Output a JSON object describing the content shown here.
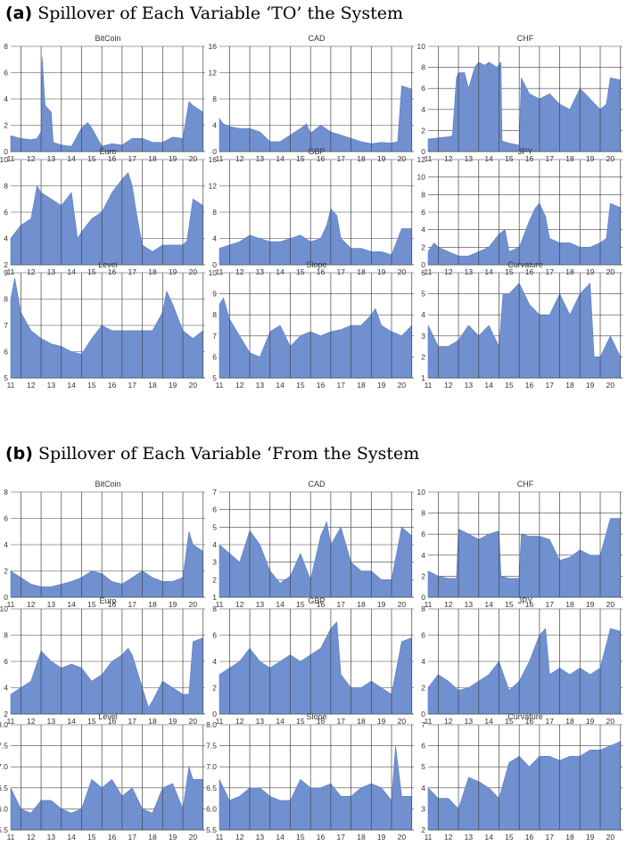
{
  "sections": [
    {
      "letter": "(a)",
      "title": "Spillover of Each Variable ‘TO’ the System"
    },
    {
      "letter": "(b)",
      "title": "Spillover of Each Variable ‘From the System"
    }
  ],
  "style": {
    "fill": "#7090D0",
    "stroke": "#5a7cc4",
    "grid": "#444444",
    "axis": "#555555"
  },
  "chart_data": [
    {
      "type": "area",
      "section": "a",
      "title": "BitCoin",
      "x_ticks": [
        "11",
        "12",
        "13",
        "14",
        "15",
        "16",
        "17",
        "18",
        "19",
        "20"
      ],
      "y_ticks": [
        "0",
        "2",
        "4",
        "6",
        "8"
      ],
      "ylim": [
        0,
        8
      ],
      "x": [
        11.0,
        11.5,
        12.0,
        12.3,
        12.5,
        12.55,
        12.7,
        13.0,
        13.1,
        13.5,
        14.0,
        14.5,
        14.8,
        15.0,
        15.5,
        16.0,
        16.5,
        17.0,
        17.5,
        18.0,
        18.5,
        19.0,
        19.5,
        19.8,
        20.0,
        20.5
      ],
      "values": [
        1.2,
        1.0,
        0.9,
        1.0,
        1.5,
        7.2,
        3.5,
        3.0,
        0.7,
        0.5,
        0.4,
        1.8,
        2.2,
        1.8,
        0.4,
        0.6,
        0.5,
        1.0,
        1.0,
        0.7,
        0.7,
        1.1,
        1.0,
        3.8,
        3.5,
        3.0
      ]
    },
    {
      "type": "area",
      "section": "a",
      "title": "CAD",
      "x_ticks": [
        "11",
        "12",
        "13",
        "14",
        "15",
        "16",
        "17",
        "18",
        "19",
        "20"
      ],
      "y_ticks": [
        "0",
        "4",
        "8",
        "12",
        "16"
      ],
      "ylim": [
        0,
        16
      ],
      "x": [
        11.0,
        11.2,
        11.5,
        12.0,
        12.5,
        13.0,
        13.5,
        14.0,
        14.5,
        15.0,
        15.3,
        15.5,
        16.0,
        16.5,
        17.0,
        17.5,
        18.0,
        18.5,
        19.0,
        19.5,
        19.8,
        20.0,
        20.5
      ],
      "values": [
        5.0,
        4.2,
        3.8,
        3.5,
        3.5,
        3.0,
        1.5,
        1.5,
        2.5,
        3.5,
        4.2,
        2.8,
        4.0,
        3.0,
        2.5,
        2.0,
        1.5,
        1.2,
        1.4,
        1.3,
        1.5,
        10.0,
        9.5
      ]
    },
    {
      "type": "area",
      "section": "a",
      "title": "CHF",
      "x_ticks": [
        "11",
        "12",
        "13",
        "14",
        "15",
        "16",
        "17",
        "18",
        "19",
        "20"
      ],
      "y_ticks": [
        "0",
        "2",
        "4",
        "6",
        "8",
        "10"
      ],
      "ylim": [
        0,
        10
      ],
      "x": [
        11.0,
        11.5,
        12.0,
        12.2,
        12.4,
        12.5,
        12.8,
        13.0,
        13.3,
        13.5,
        13.8,
        14.0,
        14.4,
        14.6,
        14.65,
        15.0,
        15.5,
        15.6,
        16.0,
        16.5,
        17.0,
        17.5,
        18.0,
        18.5,
        19.0,
        19.5,
        19.8,
        20.0,
        20.5
      ],
      "values": [
        1.2,
        1.3,
        1.4,
        1.5,
        7.0,
        7.5,
        7.5,
        6.0,
        8.0,
        8.5,
        8.2,
        8.5,
        8.0,
        8.5,
        1.0,
        0.8,
        0.6,
        7.0,
        5.5,
        5.0,
        5.5,
        4.5,
        4.0,
        6.0,
        5.0,
        4.0,
        4.5,
        7.0,
        6.8
      ]
    },
    {
      "type": "area",
      "section": "a",
      "title": "Euro",
      "x_ticks": [
        "11",
        "12",
        "13",
        "14",
        "15",
        "16",
        "17",
        "18",
        "19",
        "20"
      ],
      "y_ticks": [
        "2",
        "4",
        "6",
        "8",
        "10"
      ],
      "ylim": [
        2,
        10
      ],
      "x": [
        11.0,
        11.5,
        12.0,
        12.3,
        12.5,
        13.0,
        13.5,
        14.0,
        14.3,
        14.5,
        15.0,
        15.5,
        16.0,
        16.5,
        16.8,
        17.0,
        17.2,
        17.5,
        18.0,
        18.5,
        19.0,
        19.5,
        19.7,
        20.0,
        20.5
      ],
      "values": [
        4.0,
        5.0,
        5.5,
        8.0,
        7.5,
        7.0,
        6.5,
        7.5,
        4.0,
        4.5,
        5.5,
        6.0,
        7.5,
        8.5,
        9.0,
        8.0,
        6.0,
        3.5,
        3.0,
        3.5,
        3.5,
        3.5,
        3.8,
        7.0,
        6.5
      ]
    },
    {
      "type": "area",
      "section": "a",
      "title": "GBP",
      "x_ticks": [
        "11",
        "12",
        "13",
        "14",
        "15",
        "16",
        "17",
        "18",
        "19",
        "20"
      ],
      "y_ticks": [
        "0",
        "4",
        "8",
        "12",
        "16"
      ],
      "ylim": [
        0,
        16
      ],
      "x": [
        11.0,
        11.5,
        12.0,
        12.5,
        13.0,
        13.5,
        14.0,
        14.5,
        15.0,
        15.5,
        16.0,
        16.3,
        16.5,
        16.8,
        17.0,
        17.5,
        18.0,
        18.5,
        19.0,
        19.5,
        20.0,
        20.5
      ],
      "values": [
        2.5,
        3.0,
        3.5,
        4.5,
        4.0,
        3.5,
        3.5,
        4.0,
        4.5,
        3.5,
        4.0,
        6.0,
        8.5,
        7.5,
        4.0,
        2.5,
        2.5,
        2.0,
        2.0,
        1.5,
        5.5,
        5.5
      ]
    },
    {
      "type": "area",
      "section": "a",
      "title": "JPY",
      "x_ticks": [
        "11",
        "12",
        "13",
        "14",
        "15",
        "16",
        "17",
        "18",
        "19",
        "20"
      ],
      "y_ticks": [
        "0",
        "2",
        "4",
        "6",
        "8",
        "10",
        "12"
      ],
      "ylim": [
        0,
        12
      ],
      "x": [
        11.0,
        11.3,
        11.5,
        12.0,
        12.5,
        13.0,
        13.5,
        14.0,
        14.5,
        14.8,
        15.0,
        15.5,
        16.0,
        16.3,
        16.5,
        16.8,
        17.0,
        17.5,
        18.0,
        18.5,
        19.0,
        19.5,
        19.8,
        20.0,
        20.5
      ],
      "values": [
        1.5,
        2.5,
        2.0,
        1.5,
        1.0,
        1.0,
        1.5,
        2.0,
        3.5,
        4.0,
        1.5,
        2.0,
        5.0,
        6.5,
        7.0,
        5.5,
        3.0,
        2.5,
        2.5,
        2.0,
        2.0,
        2.5,
        3.0,
        7.0,
        6.5
      ]
    },
    {
      "type": "area",
      "section": "a",
      "title": "Level",
      "x_ticks": [
        "11",
        "12",
        "13",
        "14",
        "15",
        "16",
        "17",
        "18",
        "19",
        "20"
      ],
      "y_ticks": [
        "5",
        "6",
        "7",
        "8",
        "9"
      ],
      "ylim": [
        5,
        9
      ],
      "x": [
        11.0,
        11.2,
        11.5,
        12.0,
        12.5,
        13.0,
        13.5,
        14.0,
        14.5,
        15.0,
        15.5,
        16.0,
        16.5,
        17.0,
        17.5,
        18.0,
        18.5,
        18.7,
        19.0,
        19.5,
        20.0,
        20.5
      ],
      "values": [
        8.0,
        8.8,
        7.5,
        6.8,
        6.5,
        6.3,
        6.2,
        6.0,
        5.9,
        6.5,
        7.0,
        6.8,
        6.8,
        6.8,
        6.8,
        6.8,
        7.5,
        8.3,
        7.8,
        6.8,
        6.5,
        6.8
      ]
    },
    {
      "type": "area",
      "section": "a",
      "title": "Slope",
      "x_ticks": [
        "11",
        "12",
        "13",
        "14",
        "15",
        "16",
        "17",
        "18",
        "19",
        "20"
      ],
      "y_ticks": [
        "5",
        "6",
        "7",
        "8",
        "9",
        "10"
      ],
      "ylim": [
        5,
        10
      ],
      "x": [
        11.0,
        11.2,
        11.5,
        12.0,
        12.5,
        13.0,
        13.5,
        14.0,
        14.5,
        15.0,
        15.5,
        16.0,
        16.5,
        17.0,
        17.5,
        18.0,
        18.5,
        18.7,
        19.0,
        19.5,
        20.0,
        20.5
      ],
      "values": [
        8.5,
        8.8,
        7.8,
        7.0,
        6.2,
        6.0,
        7.2,
        7.5,
        6.5,
        7.0,
        7.2,
        7.0,
        7.2,
        7.3,
        7.5,
        7.5,
        8.0,
        8.3,
        7.5,
        7.2,
        7.0,
        7.5
      ]
    },
    {
      "type": "area",
      "section": "a",
      "title": "Curvature",
      "x_ticks": [
        "11",
        "12",
        "13",
        "14",
        "15",
        "16",
        "17",
        "18",
        "19",
        "20"
      ],
      "y_ticks": [
        "1",
        "2",
        "3",
        "4",
        "5",
        "6"
      ],
      "ylim": [
        1,
        6
      ],
      "x": [
        11.0,
        11.5,
        12.0,
        12.5,
        13.0,
        13.5,
        14.0,
        14.5,
        14.7,
        15.0,
        15.5,
        16.0,
        16.5,
        17.0,
        17.5,
        18.0,
        18.5,
        19.0,
        19.2,
        19.5,
        20.0,
        20.5
      ],
      "values": [
        3.5,
        2.5,
        2.5,
        2.8,
        3.5,
        3.0,
        3.5,
        2.5,
        5.0,
        5.0,
        5.5,
        4.5,
        4.0,
        4.0,
        5.0,
        4.0,
        5.0,
        5.5,
        2.0,
        2.0,
        3.0,
        2.0
      ]
    },
    {
      "type": "area",
      "section": "b",
      "title": "BitCoin",
      "x_ticks": [
        "11",
        "12",
        "13",
        "14",
        "15",
        "16",
        "17",
        "18",
        "19",
        "20"
      ],
      "y_ticks": [
        "0",
        "2",
        "4",
        "6",
        "8"
      ],
      "ylim": [
        0,
        8
      ],
      "x": [
        11.0,
        11.5,
        12.0,
        12.5,
        13.0,
        13.5,
        14.0,
        14.5,
        15.0,
        15.5,
        16.0,
        16.5,
        17.0,
        17.5,
        18.0,
        18.5,
        19.0,
        19.5,
        19.8,
        20.0,
        20.5
      ],
      "values": [
        2.0,
        1.5,
        1.0,
        0.8,
        0.8,
        1.0,
        1.2,
        1.5,
        2.0,
        1.8,
        1.2,
        1.0,
        1.5,
        2.0,
        1.5,
        1.2,
        1.2,
        1.5,
        5.0,
        4.0,
        3.5
      ]
    },
    {
      "type": "area",
      "section": "b",
      "title": "CAD",
      "x_ticks": [
        "11",
        "12",
        "13",
        "14",
        "15",
        "16",
        "17",
        "18",
        "19",
        "20"
      ],
      "y_ticks": [
        "1",
        "2",
        "3",
        "4",
        "5",
        "6",
        "7"
      ],
      "ylim": [
        1,
        7
      ],
      "x": [
        11.0,
        11.5,
        12.0,
        12.5,
        13.0,
        13.5,
        14.0,
        14.5,
        15.0,
        15.5,
        16.0,
        16.3,
        16.5,
        17.0,
        17.5,
        18.0,
        18.5,
        19.0,
        19.5,
        20.0,
        20.5
      ],
      "values": [
        4.0,
        3.5,
        3.0,
        4.8,
        4.0,
        2.5,
        1.8,
        2.2,
        3.5,
        2.0,
        4.5,
        5.3,
        4.0,
        5.0,
        3.0,
        2.5,
        2.5,
        2.0,
        2.0,
        5.0,
        4.5
      ]
    },
    {
      "type": "area",
      "section": "b",
      "title": "CHF",
      "x_ticks": [
        "11",
        "12",
        "13",
        "14",
        "15",
        "16",
        "17",
        "18",
        "19",
        "20"
      ],
      "y_ticks": [
        "0",
        "2",
        "4",
        "6",
        "8",
        "10"
      ],
      "ylim": [
        0,
        10
      ],
      "x": [
        11.0,
        11.5,
        12.0,
        12.4,
        12.5,
        13.0,
        13.5,
        14.0,
        14.5,
        14.6,
        15.0,
        15.5,
        15.6,
        16.0,
        16.5,
        17.0,
        17.5,
        18.0,
        18.5,
        19.0,
        19.5,
        20.0,
        20.5
      ],
      "values": [
        2.5,
        2.0,
        1.8,
        1.8,
        6.5,
        6.0,
        5.5,
        6.0,
        6.3,
        2.0,
        1.8,
        1.8,
        6.0,
        5.8,
        5.8,
        5.5,
        3.5,
        3.8,
        4.5,
        4.0,
        4.0,
        7.5,
        7.5
      ]
    },
    {
      "type": "area",
      "section": "b",
      "title": "Euro",
      "x_ticks": [
        "11",
        "12",
        "13",
        "14",
        "15",
        "16",
        "17",
        "18",
        "19",
        "20"
      ],
      "y_ticks": [
        "2",
        "4",
        "6",
        "8",
        "10"
      ],
      "ylim": [
        2,
        10
      ],
      "x": [
        11.0,
        11.5,
        12.0,
        12.5,
        13.0,
        13.5,
        14.0,
        14.5,
        15.0,
        15.5,
        16.0,
        16.5,
        16.8,
        17.0,
        17.5,
        17.8,
        18.0,
        18.5,
        19.0,
        19.5,
        19.8,
        20.0,
        20.5
      ],
      "values": [
        3.5,
        4.0,
        4.5,
        6.8,
        6.0,
        5.5,
        5.8,
        5.5,
        4.5,
        5.0,
        6.0,
        6.5,
        7.0,
        6.5,
        4.0,
        2.5,
        3.0,
        4.5,
        4.0,
        3.5,
        3.5,
        7.5,
        7.8
      ]
    },
    {
      "type": "area",
      "section": "b",
      "title": "GBP",
      "x_ticks": [
        "11",
        "12",
        "13",
        "14",
        "15",
        "16",
        "17",
        "18",
        "19",
        "20"
      ],
      "y_ticks": [
        "0",
        "2",
        "4",
        "6",
        "8"
      ],
      "ylim": [
        0,
        8
      ],
      "x": [
        11.0,
        11.5,
        12.0,
        12.5,
        13.0,
        13.5,
        14.0,
        14.5,
        15.0,
        15.5,
        16.0,
        16.5,
        16.8,
        17.0,
        17.5,
        18.0,
        18.5,
        19.0,
        19.5,
        20.0,
        20.5
      ],
      "values": [
        3.0,
        3.5,
        4.0,
        5.0,
        4.0,
        3.5,
        4.0,
        4.5,
        4.0,
        4.5,
        5.0,
        6.5,
        7.0,
        3.0,
        2.0,
        2.0,
        2.5,
        2.0,
        1.5,
        5.5,
        5.8
      ]
    },
    {
      "type": "area",
      "section": "b",
      "title": "JPY",
      "x_ticks": [
        "11",
        "12",
        "13",
        "14",
        "15",
        "16",
        "17",
        "18",
        "19",
        "20"
      ],
      "y_ticks": [
        "0",
        "2",
        "4",
        "6",
        "8"
      ],
      "ylim": [
        0,
        8
      ],
      "x": [
        11.0,
        11.5,
        12.0,
        12.5,
        13.0,
        13.5,
        14.0,
        14.5,
        15.0,
        15.5,
        16.0,
        16.5,
        16.8,
        17.0,
        17.5,
        18.0,
        18.5,
        19.0,
        19.5,
        20.0,
        20.5
      ],
      "values": [
        2.0,
        3.0,
        2.5,
        1.8,
        2.0,
        2.5,
        3.0,
        4.0,
        1.8,
        2.5,
        4.0,
        6.0,
        6.5,
        3.0,
        3.5,
        3.0,
        3.5,
        3.0,
        3.5,
        6.5,
        6.3
      ]
    },
    {
      "type": "area",
      "section": "b",
      "title": "Level",
      "x_ticks": [
        "11",
        "12",
        "13",
        "14",
        "15",
        "16",
        "17",
        "18",
        "19",
        "20"
      ],
      "y_ticks": [
        "5.5",
        "6.0",
        "6.5",
        "7.0",
        "7.5",
        "8.0"
      ],
      "ylim": [
        5.5,
        8.0
      ],
      "x": [
        11.0,
        11.5,
        12.0,
        12.5,
        13.0,
        13.5,
        14.0,
        14.5,
        15.0,
        15.5,
        16.0,
        16.5,
        17.0,
        17.5,
        18.0,
        18.5,
        19.0,
        19.5,
        19.8,
        20.0,
        20.5
      ],
      "values": [
        6.5,
        6.0,
        5.9,
        6.2,
        6.2,
        6.0,
        5.9,
        6.0,
        6.7,
        6.5,
        6.7,
        6.3,
        6.5,
        6.0,
        5.9,
        6.5,
        6.6,
        6.0,
        7.0,
        6.7,
        6.7
      ]
    },
    {
      "type": "area",
      "section": "b",
      "title": "Slope",
      "x_ticks": [
        "11",
        "12",
        "13",
        "14",
        "15",
        "16",
        "17",
        "18",
        "19",
        "20"
      ],
      "y_ticks": [
        "5.5",
        "6.0",
        "6.5",
        "7.0",
        "7.5",
        "8.0"
      ],
      "ylim": [
        5.5,
        8.0
      ],
      "x": [
        11.0,
        11.5,
        12.0,
        12.5,
        13.0,
        13.5,
        14.0,
        14.5,
        15.0,
        15.5,
        16.0,
        16.5,
        17.0,
        17.5,
        18.0,
        18.5,
        19.0,
        19.5,
        19.7,
        20.0,
        20.5
      ],
      "values": [
        6.7,
        6.2,
        6.3,
        6.5,
        6.5,
        6.3,
        6.2,
        6.2,
        6.7,
        6.5,
        6.5,
        6.6,
        6.3,
        6.3,
        6.5,
        6.6,
        6.5,
        6.2,
        7.5,
        6.3,
        6.3
      ]
    },
    {
      "type": "area",
      "section": "b",
      "title": "Curvature",
      "x_ticks": [
        "11",
        "12",
        "13",
        "14",
        "15",
        "16",
        "17",
        "18",
        "19",
        "20"
      ],
      "y_ticks": [
        "2",
        "3",
        "4",
        "5",
        "6",
        "7"
      ],
      "ylim": [
        2,
        7
      ],
      "x": [
        11.0,
        11.5,
        12.0,
        12.5,
        13.0,
        13.5,
        14.0,
        14.5,
        15.0,
        15.5,
        16.0,
        16.5,
        17.0,
        17.5,
        18.0,
        18.5,
        19.0,
        19.5,
        20.0,
        20.5
      ],
      "values": [
        4.0,
        3.5,
        3.5,
        3.0,
        4.5,
        4.3,
        4.0,
        3.5,
        5.2,
        5.5,
        5.0,
        5.5,
        5.5,
        5.3,
        5.5,
        5.5,
        5.8,
        5.8,
        6.0,
        6.2
      ]
    }
  ]
}
